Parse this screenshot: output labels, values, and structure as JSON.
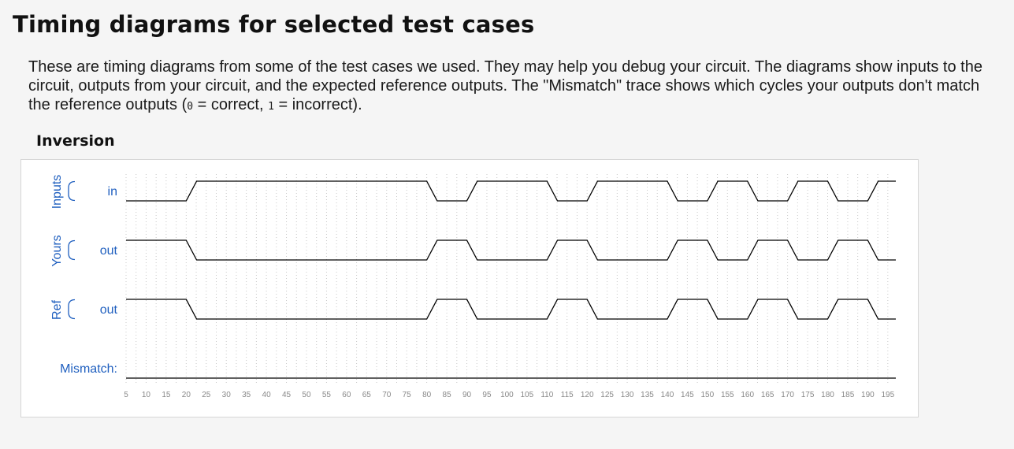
{
  "page": {
    "title": "Timing diagrams for selected test cases",
    "intro": {
      "part1": "These are timing diagrams from some of the test cases we used. They may help you debug your circuit. The diagrams show inputs to the circuit, outputs from your circuit, and the expected reference outputs. The \"Mismatch\" trace shows which cycles your outputs don't match the reference outputs (",
      "code0": "0",
      "part2": " = correct, ",
      "code1": "1",
      "part3": " = incorrect)."
    }
  },
  "section": {
    "title": "Inversion"
  },
  "colors": {
    "group_label": "#1f5fbf",
    "trace": "#000000",
    "grid": "#c8c8c8",
    "tick": "#888888"
  },
  "chart_data": {
    "type": "timing",
    "time_range": [
      5,
      197
    ],
    "ticks": [
      5,
      10,
      15,
      20,
      25,
      30,
      35,
      40,
      45,
      50,
      55,
      60,
      65,
      70,
      75,
      80,
      85,
      90,
      95,
      100,
      105,
      110,
      115,
      120,
      125,
      130,
      135,
      140,
      145,
      150,
      155,
      160,
      165,
      170,
      175,
      180,
      185,
      190,
      195
    ],
    "groups": [
      {
        "name": "Inputs",
        "signals": [
          0
        ]
      },
      {
        "name": "Yours",
        "signals": [
          1
        ]
      },
      {
        "name": "Ref",
        "signals": [
          2
        ]
      }
    ],
    "signals": [
      {
        "label": "in",
        "initial": 0,
        "transitions": [
          20,
          80,
          90,
          110,
          120,
          140,
          150,
          160,
          170,
          180,
          190
        ]
      },
      {
        "label": "out",
        "initial": 1,
        "transitions": [
          20,
          80,
          90,
          110,
          120,
          140,
          150,
          160,
          170,
          180,
          190
        ]
      },
      {
        "label": "out",
        "initial": 1,
        "transitions": [
          20,
          80,
          90,
          110,
          120,
          140,
          150,
          160,
          170,
          180,
          190
        ]
      }
    ],
    "mismatch": {
      "label": "Mismatch:",
      "initial": 0,
      "transitions": []
    }
  }
}
